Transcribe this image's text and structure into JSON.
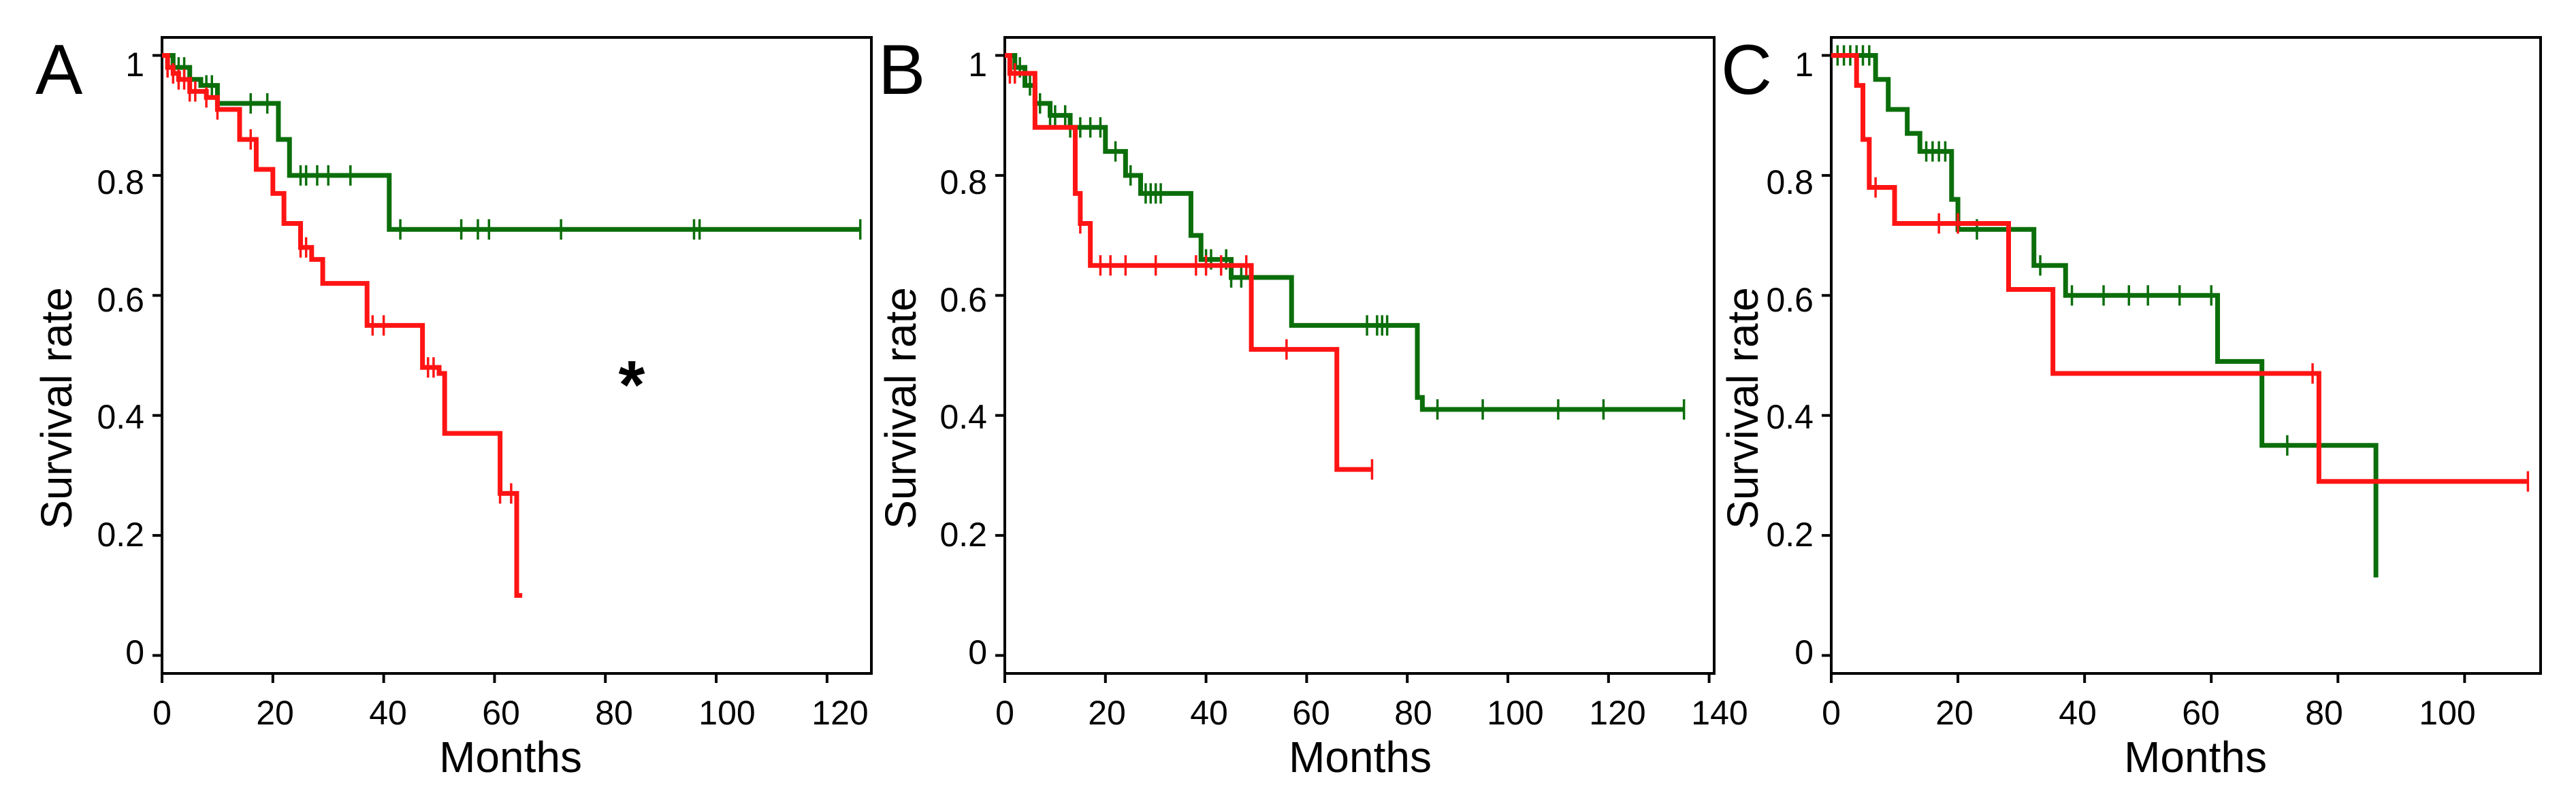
{
  "colors": {
    "green": "#0b6e0b",
    "red": "#ff1414",
    "axis": "#000000"
  },
  "chart_data": [
    {
      "type": "line",
      "panel": "A",
      "title": "",
      "xlabel": "Months",
      "ylabel": "Survival rate",
      "xlim": [
        0,
        128
      ],
      "ylim": [
        -0.03,
        1.03
      ],
      "xticks": [
        0,
        20,
        40,
        60,
        80,
        100,
        120
      ],
      "xtick_labels": [
        "0",
        "20",
        "40",
        "60",
        "80",
        "100",
        "120"
      ],
      "yticks": [
        0,
        0.2,
        0.4,
        0.6,
        0.8,
        1
      ],
      "ytick_labels": [
        "0",
        "0.2",
        "0.4",
        "0.6",
        "0.8",
        "1"
      ],
      "annotation": "*",
      "annotation_at": [
        87,
        0.46
      ],
      "series": [
        {
          "name": "green",
          "color": "#0b6e0b",
          "x": [
            0,
            2,
            5,
            7,
            10,
            21,
            23,
            41
          ],
          "y": [
            1,
            0.98,
            0.96,
            0.95,
            0.92,
            0.86,
            0.8,
            0.71
          ],
          "end_x": 126,
          "censored": [
            2,
            3,
            4,
            8,
            9,
            16,
            19,
            25,
            26,
            28,
            30,
            34,
            43,
            54,
            57,
            59,
            72,
            96,
            97,
            126
          ]
        },
        {
          "name": "red",
          "color": "#ff1414",
          "x": [
            0,
            1,
            2,
            3,
            5,
            8,
            10,
            14,
            17,
            20,
            22,
            25,
            27,
            29,
            37,
            47,
            50,
            51,
            61,
            64
          ],
          "y": [
            1,
            0.98,
            0.97,
            0.96,
            0.94,
            0.93,
            0.91,
            0.86,
            0.81,
            0.77,
            0.72,
            0.68,
            0.66,
            0.62,
            0.55,
            0.48,
            0.47,
            0.37,
            0.27,
            0.1
          ],
          "end_x": 65,
          "censored": [
            1,
            2,
            3,
            4,
            5,
            6,
            8,
            10,
            16,
            25,
            26,
            38,
            40,
            48,
            49,
            61,
            63
          ]
        }
      ]
    },
    {
      "type": "line",
      "panel": "B",
      "title": "",
      "xlabel": "Months",
      "ylabel": "Survival rate",
      "xlim": [
        0,
        141
      ],
      "ylim": [
        -0.03,
        1.03
      ],
      "xticks": [
        0,
        20,
        40,
        60,
        80,
        100,
        120,
        140
      ],
      "xtick_labels": [
        "0",
        "20",
        "40",
        "60",
        "80",
        "100",
        "120",
        "140"
      ],
      "yticks": [
        0,
        0.2,
        0.4,
        0.6,
        0.8,
        1
      ],
      "ytick_labels": [
        "0",
        "0.2",
        "0.4",
        "0.6",
        "0.8",
        "1"
      ],
      "series": [
        {
          "name": "green",
          "color": "#0b6e0b",
          "x": [
            0,
            2,
            4,
            6,
            9,
            13,
            20,
            24,
            27,
            37,
            39,
            45,
            57,
            82,
            83
          ],
          "y": [
            1,
            0.98,
            0.95,
            0.92,
            0.9,
            0.88,
            0.84,
            0.8,
            0.77,
            0.7,
            0.66,
            0.63,
            0.55,
            0.43,
            0.41
          ],
          "end_x": 135,
          "censored": [
            3,
            5,
            6,
            7,
            9,
            10,
            12,
            13,
            15,
            17,
            19,
            22,
            25,
            28,
            29,
            30,
            31,
            40,
            41,
            44,
            45,
            47,
            72,
            74,
            75,
            76,
            86,
            95,
            110,
            119,
            135
          ]
        },
        {
          "name": "red",
          "color": "#ff1414",
          "x": [
            0,
            1,
            6,
            14,
            15,
            17,
            49,
            66
          ],
          "y": [
            1,
            0.97,
            0.88,
            0.77,
            0.72,
            0.65,
            0.51,
            0.31
          ],
          "end_x": 73,
          "censored": [
            1,
            2,
            15,
            19,
            21,
            24,
            30,
            38,
            40,
            43,
            48,
            56,
            73
          ]
        }
      ]
    },
    {
      "type": "line",
      "panel": "C",
      "title": "",
      "xlabel": "Months",
      "ylabel": "Survival rate",
      "xlim": [
        0,
        112
      ],
      "ylim": [
        -0.03,
        1.03
      ],
      "xticks": [
        0,
        20,
        40,
        60,
        80,
        100
      ],
      "xtick_labels": [
        "0",
        "20",
        "40",
        "60",
        "80",
        "100"
      ],
      "yticks": [
        0,
        0.2,
        0.4,
        0.6,
        0.8,
        1
      ],
      "ytick_labels": [
        "0",
        "0.2",
        "0.4",
        "0.6",
        "0.8",
        "1"
      ],
      "series": [
        {
          "name": "green",
          "color": "#0b6e0b",
          "x": [
            0,
            7,
            9,
            12,
            14,
            19,
            20,
            32,
            37,
            61,
            68,
            86
          ],
          "y": [
            1,
            0.96,
            0.91,
            0.87,
            0.84,
            0.76,
            0.71,
            0.65,
            0.6,
            0.49,
            0.35,
            0.13
          ],
          "end_x": 86,
          "censored": [
            1,
            2,
            3,
            4,
            5,
            6,
            15,
            16,
            17,
            18,
            23,
            33,
            38,
            43,
            47,
            50,
            55,
            60,
            72
          ]
        },
        {
          "name": "red",
          "color": "#ff1414",
          "x": [
            0,
            4,
            5,
            6,
            10,
            28,
            35,
            77
          ],
          "y": [
            1,
            0.95,
            0.86,
            0.78,
            0.72,
            0.61,
            0.47,
            0.29
          ],
          "end_x": 110,
          "censored": [
            7,
            17,
            20,
            76,
            110
          ]
        }
      ]
    }
  ]
}
